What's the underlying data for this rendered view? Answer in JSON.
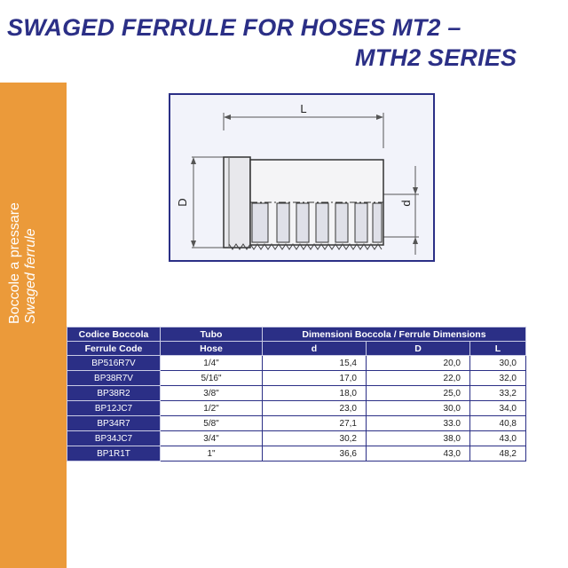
{
  "title": {
    "line1": "SWAGED FERRULE FOR HOSES MT2 –",
    "line2": "MTH2 SERIES"
  },
  "sidebar": {
    "italian": "Boccole a pressare",
    "english": "Swaged ferrule"
  },
  "drawing": {
    "label_L": "L",
    "label_D": "D",
    "label_d": "d"
  },
  "table": {
    "headers": {
      "code_it": "Codice Boccola",
      "code_en": "Ferrule Code",
      "hose_it": "Tubo",
      "hose_en": "Hose",
      "dims": "Dimensioni Boccola / Ferrule Dimensions",
      "d": "d",
      "D": "D",
      "L": "L"
    },
    "rows": [
      {
        "code": "BP516R7V",
        "hose": "1/4\"",
        "d": "15,4",
        "D": "20,0",
        "L": "30,0"
      },
      {
        "code": "BP38R7V",
        "hose": "5/16\"",
        "d": "17,0",
        "D": "22,0",
        "L": "32,0"
      },
      {
        "code": "BP38R2",
        "hose": "3/8\"",
        "d": "18,0",
        "D": "25,0",
        "L": "33,2"
      },
      {
        "code": "BP12JC7",
        "hose": "1/2\"",
        "d": "23,0",
        "D": "30,0",
        "L": "34,0"
      },
      {
        "code": "BP34R7",
        "hose": "5/8\"",
        "d": "27,1",
        "D": "33.0",
        "L": "40,8"
      },
      {
        "code": "BP34JC7",
        "hose": "3/4\"",
        "d": "30,2",
        "D": "38,0",
        "L": "43,0"
      },
      {
        "code": "BP1R1T",
        "hose": "1\"",
        "d": "36,6",
        "D": "43,0",
        "L": "48,2"
      }
    ]
  },
  "colors": {
    "brand_blue": "#2b2f86",
    "side_orange": "#eb9a3a"
  }
}
